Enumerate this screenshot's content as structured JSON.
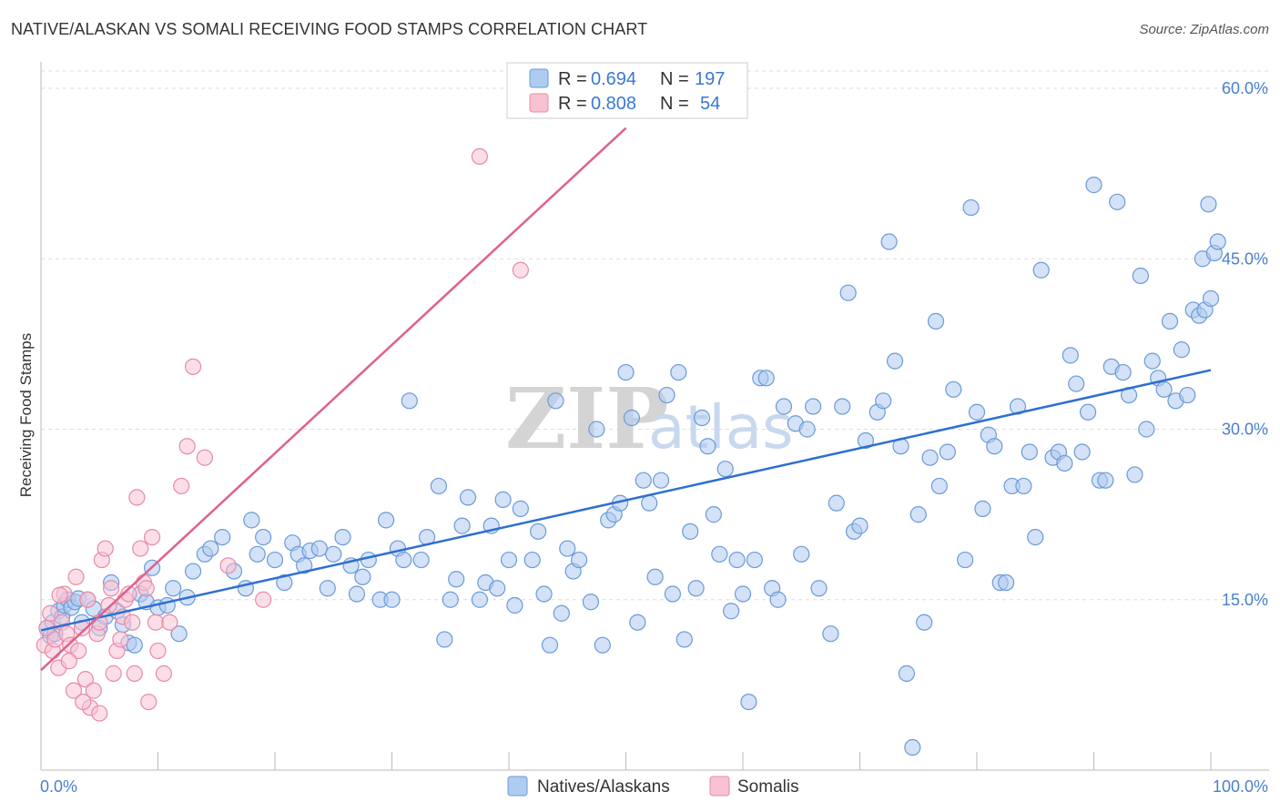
{
  "title": "NATIVE/ALASKAN VS SOMALI RECEIVING FOOD STAMPS CORRELATION CHART",
  "source": "Source: ZipAtlas.com",
  "colors": {
    "blue_fill": "#aecbf0",
    "blue_stroke": "#6b9ad8",
    "blue_line": "#2f6fd0",
    "pink_fill": "#f7c3d3",
    "pink_stroke": "#e88aa8",
    "pink_line": "#e0608c",
    "axis_label": "#4a7fd0",
    "grid": "#dddddd"
  },
  "legend": {
    "rows": [
      {
        "r_label": "R =",
        "r_value": "0.694",
        "n_label": "N =",
        "n_value": "197"
      },
      {
        "r_label": "R =",
        "r_value": "0.808",
        "n_label": "N =",
        "n_value": "54"
      }
    ]
  },
  "watermark": {
    "zip": "ZIP",
    "atlas": "atlas"
  },
  "chart_data": {
    "type": "scatter",
    "title": "NATIVE/ALASKAN VS SOMALI RECEIVING FOOD STAMPS CORRELATION CHART",
    "xlabel": "",
    "ylabel": "Receiving Food Stamps",
    "xlim": [
      0,
      100
    ],
    "ylim": [
      0,
      60
    ],
    "x_tick_labels": [
      "0.0%",
      "100.0%"
    ],
    "y_ticks": [
      15,
      30,
      45,
      60
    ],
    "y_tick_labels": [
      "15.0%",
      "30.0%",
      "45.0%",
      "60.0%"
    ],
    "legend_entries": [
      "Natives/Alaskans",
      "Somalis"
    ],
    "series": [
      {
        "name": "Natives/Alaskans",
        "r": 0.694,
        "n": 197,
        "trendline": {
          "x0": 0,
          "y0": 12.3,
          "x1": 100,
          "y1": 35.2
        },
        "points": [
          [
            0.5,
            12.5
          ],
          [
            0.8,
            11.8
          ],
          [
            1.0,
            13.0
          ],
          [
            1.2,
            12.0
          ],
          [
            1.5,
            14.0
          ],
          [
            1.8,
            13.5
          ],
          [
            2.0,
            14.5
          ],
          [
            2.3,
            15.0
          ],
          [
            2.6,
            14.3
          ],
          [
            2.9,
            14.8
          ],
          [
            3.2,
            15.1
          ],
          [
            3.5,
            13.0
          ],
          [
            4.0,
            15.0
          ],
          [
            4.5,
            14.2
          ],
          [
            5.0,
            12.5
          ],
          [
            5.5,
            13.5
          ],
          [
            6.0,
            16.5
          ],
          [
            6.5,
            14.0
          ],
          [
            7.0,
            12.8
          ],
          [
            7.5,
            11.2
          ],
          [
            8.0,
            11.0
          ],
          [
            8.5,
            15.5
          ],
          [
            9.0,
            14.8
          ],
          [
            9.5,
            17.8
          ],
          [
            10.0,
            14.3
          ],
          [
            10.8,
            14.5
          ],
          [
            11.3,
            16.0
          ],
          [
            11.8,
            12.0
          ],
          [
            12.5,
            15.2
          ],
          [
            13.0,
            17.5
          ],
          [
            14.0,
            19.0
          ],
          [
            14.5,
            19.5
          ],
          [
            15.5,
            20.5
          ],
          [
            16.5,
            17.5
          ],
          [
            17.5,
            16.0
          ],
          [
            18.0,
            22.0
          ],
          [
            18.5,
            19.0
          ],
          [
            19.0,
            20.5
          ],
          [
            20.0,
            18.5
          ],
          [
            20.8,
            16.5
          ],
          [
            21.5,
            20.0
          ],
          [
            22.0,
            19.0
          ],
          [
            22.5,
            18.0
          ],
          [
            23.0,
            19.3
          ],
          [
            23.8,
            19.5
          ],
          [
            24.5,
            16.0
          ],
          [
            25.0,
            19.0
          ],
          [
            25.8,
            20.5
          ],
          [
            26.5,
            18.0
          ],
          [
            27.0,
            15.5
          ],
          [
            27.5,
            17.0
          ],
          [
            28.0,
            18.5
          ],
          [
            29.0,
            15.0
          ],
          [
            29.5,
            22.0
          ],
          [
            30.0,
            15.0
          ],
          [
            30.5,
            19.5
          ],
          [
            31.0,
            18.5
          ],
          [
            31.5,
            32.5
          ],
          [
            32.5,
            18.5
          ],
          [
            33.0,
            20.5
          ],
          [
            34.0,
            25.0
          ],
          [
            34.5,
            11.5
          ],
          [
            35.0,
            15.0
          ],
          [
            35.5,
            16.8
          ],
          [
            36.0,
            21.5
          ],
          [
            36.5,
            24.0
          ],
          [
            37.5,
            15.0
          ],
          [
            38.0,
            16.5
          ],
          [
            38.5,
            21.5
          ],
          [
            39.0,
            16.0
          ],
          [
            39.5,
            23.8
          ],
          [
            40.0,
            18.5
          ],
          [
            40.5,
            14.5
          ],
          [
            41.0,
            23.0
          ],
          [
            42.0,
            18.5
          ],
          [
            42.5,
            21.0
          ],
          [
            43.0,
            15.5
          ],
          [
            43.5,
            11.0
          ],
          [
            44.0,
            32.5
          ],
          [
            44.5,
            13.8
          ],
          [
            45.0,
            19.5
          ],
          [
            45.5,
            17.5
          ],
          [
            46.0,
            18.5
          ],
          [
            47.0,
            14.8
          ],
          [
            47.5,
            30.0
          ],
          [
            48.0,
            11.0
          ],
          [
            48.5,
            22.0
          ],
          [
            49.0,
            22.5
          ],
          [
            49.5,
            23.5
          ],
          [
            50.0,
            35.0
          ],
          [
            50.5,
            31.0
          ],
          [
            51.0,
            13.0
          ],
          [
            51.5,
            25.5
          ],
          [
            52.0,
            23.5
          ],
          [
            52.5,
            17.0
          ],
          [
            53.0,
            25.5
          ],
          [
            53.5,
            33.0
          ],
          [
            54.0,
            15.5
          ],
          [
            54.5,
            35.0
          ],
          [
            55.0,
            11.5
          ],
          [
            55.5,
            21.0
          ],
          [
            56.0,
            16.0
          ],
          [
            56.5,
            31.0
          ],
          [
            57.0,
            28.5
          ],
          [
            57.5,
            22.5
          ],
          [
            58.0,
            19.0
          ],
          [
            58.5,
            26.5
          ],
          [
            59.0,
            14.0
          ],
          [
            59.5,
            18.5
          ],
          [
            60.0,
            15.5
          ],
          [
            60.5,
            6.0
          ],
          [
            61.0,
            18.5
          ],
          [
            61.5,
            34.5
          ],
          [
            62.0,
            34.5
          ],
          [
            62.5,
            16.0
          ],
          [
            63.0,
            15.0
          ],
          [
            63.5,
            32.0
          ],
          [
            64.5,
            30.5
          ],
          [
            65.0,
            19.0
          ],
          [
            65.5,
            30.0
          ],
          [
            66.0,
            32.0
          ],
          [
            66.5,
            16.0
          ],
          [
            67.5,
            12.0
          ],
          [
            68.0,
            23.5
          ],
          [
            68.5,
            32.0
          ],
          [
            69.0,
            42.0
          ],
          [
            69.5,
            21.0
          ],
          [
            70.0,
            21.5
          ],
          [
            70.5,
            29.0
          ],
          [
            71.5,
            31.5
          ],
          [
            72.0,
            32.5
          ],
          [
            72.5,
            46.5
          ],
          [
            73.0,
            36.0
          ],
          [
            73.5,
            28.5
          ],
          [
            74.0,
            8.5
          ],
          [
            74.5,
            2.0
          ],
          [
            75.0,
            22.5
          ],
          [
            75.5,
            13.0
          ],
          [
            76.0,
            27.5
          ],
          [
            76.5,
            39.5
          ],
          [
            76.8,
            25.0
          ],
          [
            77.5,
            28.0
          ],
          [
            78.0,
            33.5
          ],
          [
            79.0,
            18.5
          ],
          [
            79.5,
            49.5
          ],
          [
            80.0,
            31.5
          ],
          [
            80.5,
            23.0
          ],
          [
            81.0,
            29.5
          ],
          [
            81.5,
            28.5
          ],
          [
            82.0,
            16.5
          ],
          [
            82.5,
            16.5
          ],
          [
            83.0,
            25.0
          ],
          [
            83.5,
            32.0
          ],
          [
            84.0,
            25.0
          ],
          [
            84.5,
            28.0
          ],
          [
            85.0,
            20.5
          ],
          [
            85.5,
            44.0
          ],
          [
            86.5,
            27.5
          ],
          [
            87.0,
            28.0
          ],
          [
            87.5,
            27.0
          ],
          [
            88.0,
            36.5
          ],
          [
            88.5,
            34.0
          ],
          [
            89.0,
            28.0
          ],
          [
            89.5,
            31.5
          ],
          [
            90.0,
            51.5
          ],
          [
            90.5,
            25.5
          ],
          [
            91.0,
            25.5
          ],
          [
            91.5,
            35.5
          ],
          [
            92.0,
            50.0
          ],
          [
            92.5,
            35.0
          ],
          [
            93.0,
            33.0
          ],
          [
            93.5,
            26.0
          ],
          [
            94.0,
            43.5
          ],
          [
            94.5,
            30.0
          ],
          [
            95.0,
            36.0
          ],
          [
            95.5,
            34.5
          ],
          [
            96.0,
            33.5
          ],
          [
            96.5,
            39.5
          ],
          [
            97.0,
            32.5
          ],
          [
            97.5,
            37.0
          ],
          [
            98.0,
            33.0
          ],
          [
            98.5,
            40.5
          ],
          [
            99.0,
            40.0
          ],
          [
            99.3,
            45.0
          ],
          [
            99.5,
            40.5
          ],
          [
            99.8,
            49.8
          ],
          [
            100.0,
            41.5
          ],
          [
            100.3,
            45.5
          ],
          [
            100.6,
            46.5
          ]
        ]
      },
      {
        "name": "Somalis",
        "r": 0.808,
        "n": 54,
        "trendline": {
          "x0": 0,
          "y0": 8.8,
          "x1": 50,
          "y1": 56.5
        },
        "points": [
          [
            0.3,
            11.0
          ],
          [
            0.5,
            12.5
          ],
          [
            0.8,
            13.8
          ],
          [
            1.0,
            10.5
          ],
          [
            1.2,
            11.5
          ],
          [
            1.5,
            9.0
          ],
          [
            1.8,
            13.0
          ],
          [
            2.0,
            15.5
          ],
          [
            2.2,
            12.0
          ],
          [
            2.5,
            11.0
          ],
          [
            2.8,
            7.0
          ],
          [
            3.0,
            17.0
          ],
          [
            3.2,
            10.5
          ],
          [
            3.5,
            12.5
          ],
          [
            3.8,
            8.0
          ],
          [
            4.0,
            15.0
          ],
          [
            4.2,
            5.5
          ],
          [
            4.5,
            7.0
          ],
          [
            4.8,
            12.0
          ],
          [
            5.0,
            13.0
          ],
          [
            5.2,
            18.5
          ],
          [
            5.5,
            19.5
          ],
          [
            5.8,
            14.5
          ],
          [
            6.0,
            16.0
          ],
          [
            6.2,
            8.5
          ],
          [
            6.5,
            10.5
          ],
          [
            6.8,
            11.5
          ],
          [
            7.0,
            13.5
          ],
          [
            7.2,
            15.0
          ],
          [
            7.5,
            15.5
          ],
          [
            7.8,
            13.0
          ],
          [
            8.0,
            8.5
          ],
          [
            8.2,
            24.0
          ],
          [
            8.5,
            19.5
          ],
          [
            8.8,
            16.5
          ],
          [
            9.0,
            16.0
          ],
          [
            9.2,
            6.0
          ],
          [
            9.5,
            20.5
          ],
          [
            9.8,
            13.0
          ],
          [
            10.0,
            10.5
          ],
          [
            10.5,
            8.5
          ],
          [
            11.0,
            13.0
          ],
          [
            12.0,
            25.0
          ],
          [
            12.5,
            28.5
          ],
          [
            13.0,
            35.5
          ],
          [
            14.0,
            27.5
          ],
          [
            16.0,
            18.0
          ],
          [
            19.0,
            15.0
          ],
          [
            37.5,
            54.0
          ],
          [
            41.0,
            44.0
          ],
          [
            5.0,
            5.0
          ],
          [
            3.6,
            6.0
          ],
          [
            1.6,
            15.4
          ],
          [
            2.4,
            9.6
          ]
        ]
      }
    ]
  },
  "bottom_legend": [
    {
      "label": "Natives/Alaskans"
    },
    {
      "label": "Somalis"
    }
  ]
}
